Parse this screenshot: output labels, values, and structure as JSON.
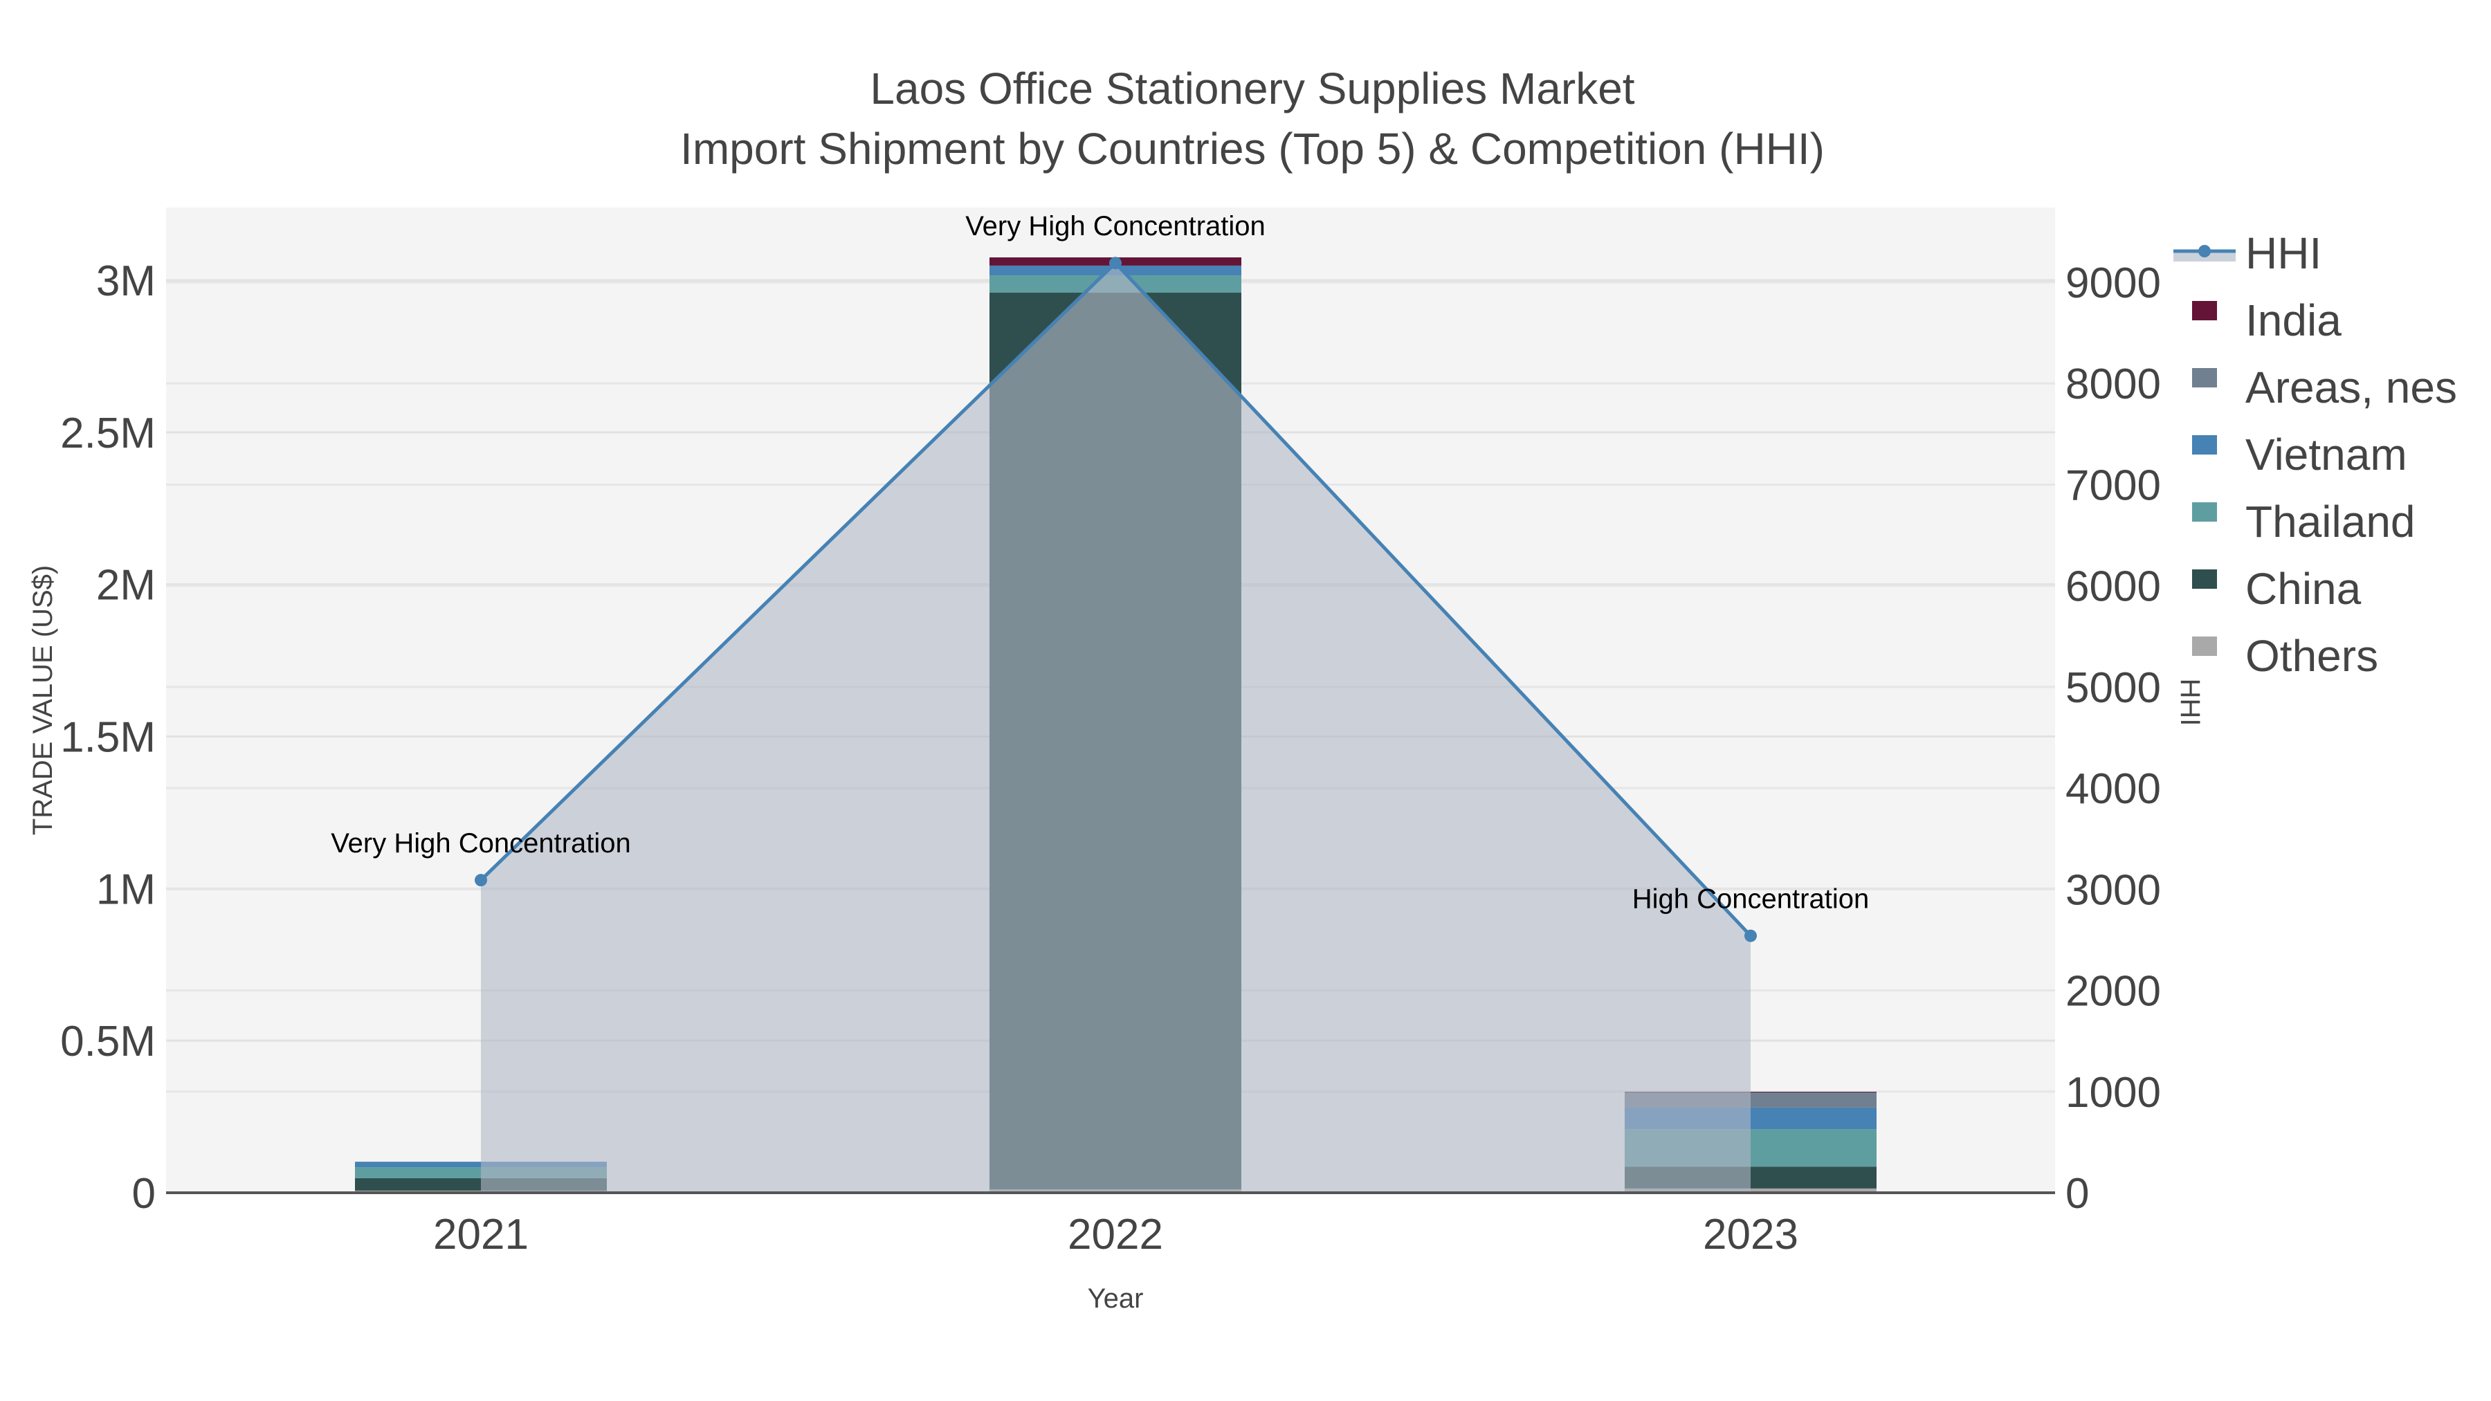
{
  "title": {
    "line1": "Laos Office Stationery Supplies Market",
    "line2": "Import Shipment by Countries (Top 5) & Competition (HHI)"
  },
  "axes": {
    "x_title": "Year",
    "y_left_title": "TRADE VALUE (US$)",
    "y_right_title": "HHI",
    "y_left_ticks": [
      "0",
      "0.5M",
      "1M",
      "1.5M",
      "2M",
      "2.5M",
      "3M"
    ],
    "y_right_ticks": [
      "0",
      "1000",
      "2000",
      "3000",
      "4000",
      "5000",
      "6000",
      "7000",
      "8000",
      "9000"
    ]
  },
  "legend": {
    "items": [
      {
        "label": "HHI",
        "type": "line",
        "color": "#4682B4"
      },
      {
        "label": "India",
        "type": "box",
        "color": "#641437"
      },
      {
        "label": "Areas, nes",
        "type": "box",
        "color": "#708090"
      },
      {
        "label": "Vietnam",
        "type": "box",
        "color": "#4682B4"
      },
      {
        "label": "Thailand",
        "type": "box",
        "color": "#5F9EA0"
      },
      {
        "label": "China",
        "type": "box",
        "color": "#2F4F4F"
      },
      {
        "label": "Others",
        "type": "box",
        "color": "#A9A9A9"
      }
    ]
  },
  "chart_data": {
    "type": "bar",
    "subtype": "stacked bar with secondary-axis line/area",
    "title": "Laos Office Stationery Supplies Market — Import Shipment by Countries (Top 5) & Competition (HHI)",
    "xlabel": "Year",
    "ylabel": "TRADE VALUE (US$)",
    "y2label": "HHI",
    "categories": [
      "2021",
      "2022",
      "2023"
    ],
    "ylim": [
      0,
      3240000
    ],
    "y2lim": [
      0,
      9720
    ],
    "grid": true,
    "legend_position": "right",
    "series": [
      {
        "name": "Others",
        "color": "#A9A9A9",
        "values": [
          7000,
          11000,
          14000
        ]
      },
      {
        "name": "China",
        "color": "#2F4F4F",
        "values": [
          41000,
          2948000,
          72000
        ]
      },
      {
        "name": "Thailand",
        "color": "#5F9EA0",
        "values": [
          36000,
          57000,
          123000
        ]
      },
      {
        "name": "Vietnam",
        "color": "#4682B4",
        "values": [
          18000,
          32000,
          71000
        ]
      },
      {
        "name": "Areas, nes",
        "color": "#708090",
        "values": [
          0,
          0,
          50000
        ]
      },
      {
        "name": "India",
        "color": "#641437",
        "values": [
          0,
          27000,
          2000
        ]
      }
    ],
    "line_series": {
      "name": "HHI",
      "axis": "y2",
      "color": "#4682B4",
      "fill": "tozeroy",
      "fill_color": "rgba(176,184,198,0.6)",
      "values": [
        3090,
        9190,
        2540
      ],
      "annotations": [
        "Very High Concentration",
        "Very High Concentration",
        "High Concentration"
      ]
    }
  },
  "colors": {
    "plot_bg": "#F4F4F4",
    "grid": "#E2E2E2",
    "axis_line": "#555555",
    "text": "#444444"
  }
}
